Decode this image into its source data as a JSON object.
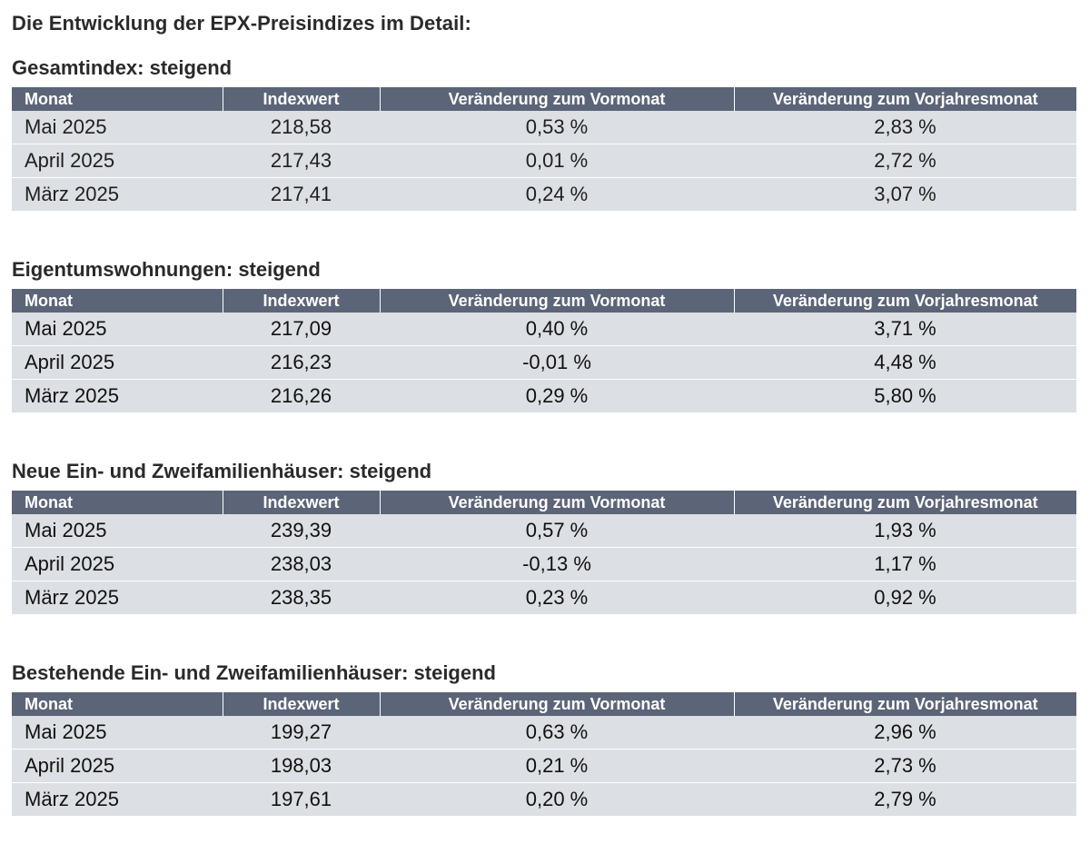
{
  "page_title": "Die Entwicklung der EPX-Preisindizes im Detail:",
  "columns": [
    "Monat",
    "Indexwert",
    "Veränderung zum Vormonat",
    "Veränderung zum Vorjahresmonat"
  ],
  "sections": [
    {
      "title": "Gesamtindex: steigend",
      "rows": [
        {
          "month": "Mai 2025",
          "index": "218,58",
          "mom": "0,53 %",
          "yoy": "2,83 %"
        },
        {
          "month": "April 2025",
          "index": "217,43",
          "mom": "0,01 %",
          "yoy": "2,72 %"
        },
        {
          "month": "März 2025",
          "index": "217,41",
          "mom": "0,24 %",
          "yoy": "3,07 %"
        }
      ]
    },
    {
      "title": "Eigentumswohnungen: steigend",
      "rows": [
        {
          "month": "Mai 2025",
          "index": "217,09",
          "mom": "0,40 %",
          "yoy": "3,71 %"
        },
        {
          "month": "April 2025",
          "index": "216,23",
          "mom": "-0,01 %",
          "yoy": "4,48 %"
        },
        {
          "month": "März 2025",
          "index": "216,26",
          "mom": "0,29 %",
          "yoy": "5,80 %"
        }
      ]
    },
    {
      "title": "Neue Ein- und Zweifamilienhäuser: steigend",
      "rows": [
        {
          "month": "Mai 2025",
          "index": "239,39",
          "mom": "0,57 %",
          "yoy": "1,93 %"
        },
        {
          "month": "April 2025",
          "index": "238,03",
          "mom": "-0,13 %",
          "yoy": "1,17 %"
        },
        {
          "month": "März 2025",
          "index": "238,35",
          "mom": "0,23 %",
          "yoy": "0,92 %"
        }
      ]
    },
    {
      "title": "Bestehende Ein- und Zweifamilienhäuser: steigend",
      "rows": [
        {
          "month": "Mai 2025",
          "index": "199,27",
          "mom": "0,63 %",
          "yoy": "2,96 %"
        },
        {
          "month": "April 2025",
          "index": "198,03",
          "mom": "0,21 %",
          "yoy": "2,73 %"
        },
        {
          "month": "März 2025",
          "index": "197,61",
          "mom": "0,20 %",
          "yoy": "2,79 %"
        }
      ]
    }
  ],
  "colors": {
    "header_bg": "#5c6478",
    "header_text": "#ffffff",
    "row_bg": "#dcdfe3"
  }
}
